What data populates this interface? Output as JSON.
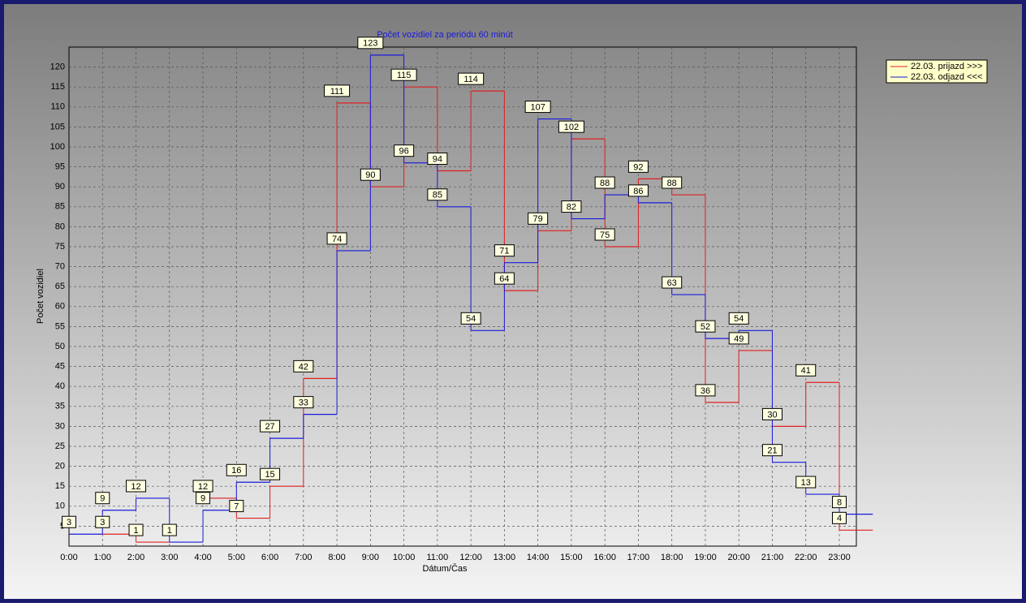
{
  "chart_data": {
    "type": "step",
    "title": "Počet vozidiel za periódu 60 minút",
    "x_label": "Dátum/Čas",
    "y_label": "Počet vozidiel",
    "categories": [
      "0:00",
      "1:00",
      "2:00",
      "3:00",
      "4:00",
      "5:00",
      "6:00",
      "7:00",
      "8:00",
      "9:00",
      "10:00",
      "11:00",
      "12:00",
      "13:00",
      "14:00",
      "15:00",
      "16:00",
      "17:00",
      "18:00",
      "19:00",
      "20:00",
      "21:00",
      "22:00",
      "23:00"
    ],
    "series": [
      {
        "name": "22.03.  prijazd >>>",
        "color": "#e02020",
        "values": [
          null,
          3,
          1,
          null,
          12,
          7,
          15,
          42,
          111,
          90,
          115,
          94,
          114,
          64,
          79,
          102,
          75,
          92,
          88,
          36,
          49,
          30,
          41,
          4
        ]
      },
      {
        "name": "22.03.  odjazd <<<",
        "color": "#1a1adc",
        "values": [
          3,
          9,
          12,
          1,
          9,
          16,
          27,
          33,
          74,
          123,
          96,
          85,
          54,
          71,
          107,
          82,
          88,
          86,
          63,
          52,
          54,
          21,
          13,
          8
        ]
      }
    ],
    "ylim": [
      0,
      125
    ],
    "yticks": [
      5,
      10,
      15,
      20,
      25,
      30,
      35,
      40,
      45,
      50,
      55,
      60,
      65,
      70,
      75,
      80,
      85,
      90,
      95,
      100,
      105,
      110,
      115,
      120
    ],
    "grid": true,
    "legend": "top-right"
  }
}
